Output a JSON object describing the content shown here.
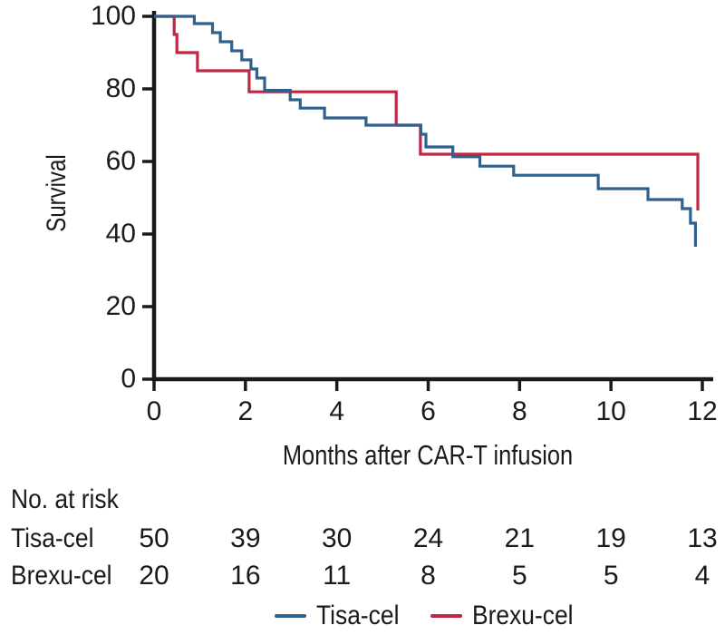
{
  "chart_data": {
    "type": "line",
    "subtype": "kaplan-meier-step",
    "title": "",
    "xlabel": "Months after CAR-T infusion",
    "ylabel": "Survival",
    "xlim": [
      0,
      12
    ],
    "ylim": [
      0,
      100
    ],
    "xticks": [
      0,
      2,
      4,
      6,
      8,
      10,
      12
    ],
    "yticks": [
      100,
      80,
      60,
      40,
      20,
      0
    ],
    "grid": false,
    "legend_position": "bottom-center",
    "series": [
      {
        "name": "Tisa-cel",
        "color": "#2f618c",
        "steps": [
          [
            0,
            100
          ],
          [
            0.88,
            98
          ],
          [
            1.28,
            95.5
          ],
          [
            1.45,
            93
          ],
          [
            1.7,
            90.5
          ],
          [
            1.92,
            88
          ],
          [
            2.12,
            85.5
          ],
          [
            2.25,
            83
          ],
          [
            2.42,
            79.6
          ],
          [
            2.98,
            77
          ],
          [
            3.2,
            74.7
          ],
          [
            3.73,
            72
          ],
          [
            4.64,
            70
          ],
          [
            5.84,
            67.5
          ],
          [
            5.95,
            64
          ],
          [
            6.54,
            61.3
          ],
          [
            7.13,
            58.7
          ],
          [
            7.87,
            56.2
          ],
          [
            9.72,
            52.5
          ],
          [
            10.81,
            49.5
          ],
          [
            11.56,
            47
          ],
          [
            11.74,
            43
          ],
          [
            11.85,
            36.5
          ]
        ]
      },
      {
        "name": "Brexu-cel",
        "color": "#bd2742",
        "steps": [
          [
            0,
            100
          ],
          [
            0.44,
            95
          ],
          [
            0.5,
            90
          ],
          [
            0.95,
            85
          ],
          [
            2.08,
            79.2
          ],
          [
            5.3,
            70
          ],
          [
            5.83,
            62
          ],
          [
            11.9,
            46.5
          ]
        ]
      }
    ]
  },
  "risk_table": {
    "title": "No. at risk",
    "months": [
      0,
      2,
      4,
      6,
      8,
      10,
      12
    ],
    "rows": [
      {
        "label": "Tisa-cel",
        "counts": [
          50,
          39,
          30,
          24,
          21,
          19,
          13
        ]
      },
      {
        "label": "Brexu-cel",
        "counts": [
          20,
          16,
          11,
          8,
          5,
          5,
          4
        ]
      }
    ]
  },
  "legend": {
    "items": [
      {
        "label": "Tisa-cel",
        "color": "#2f618c"
      },
      {
        "label": "Brexu-cel",
        "color": "#bd2742"
      }
    ]
  },
  "colors": {
    "axis": "#1a1a1a",
    "text": "#1a1a1a",
    "background": "#ffffff",
    "tisa_cel_blue": "#2f618c",
    "brexu_cel_red": "#bd2742"
  }
}
